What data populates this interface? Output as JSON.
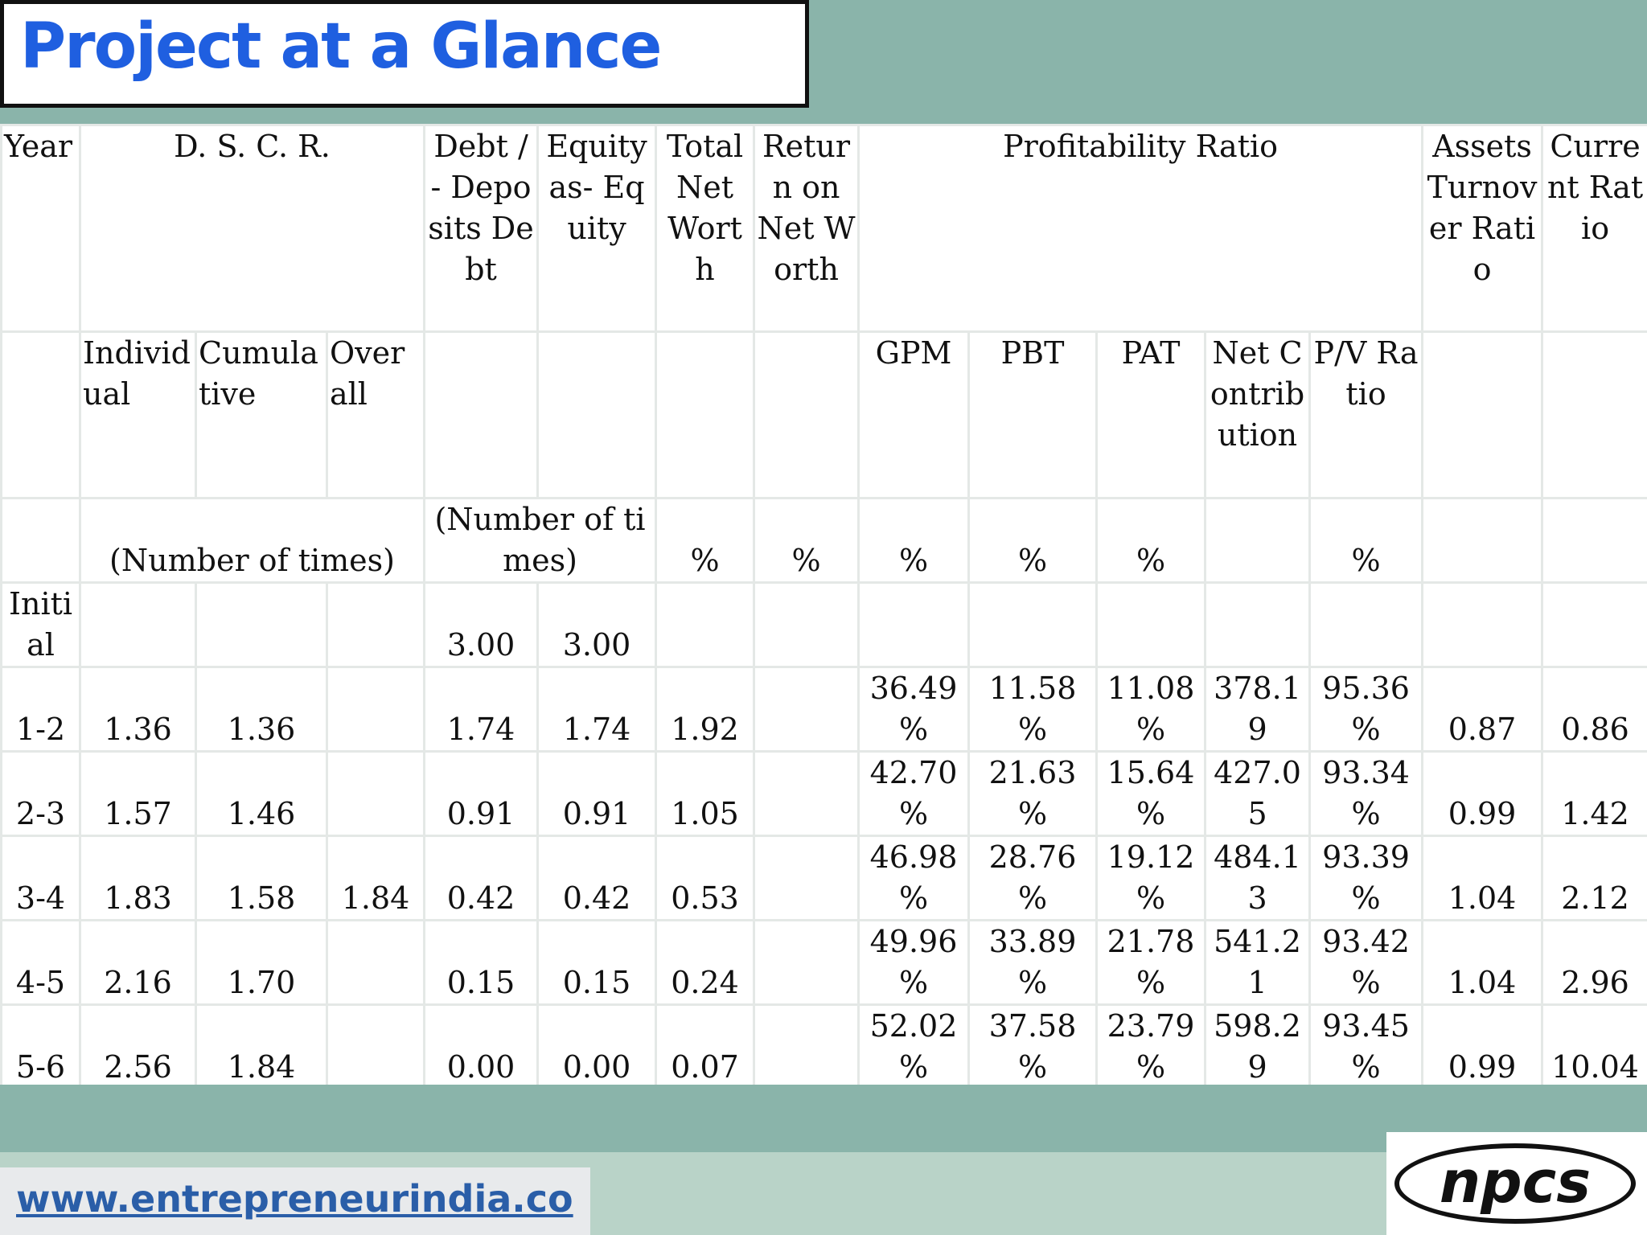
{
  "title": "Project at a Glance",
  "table": {
    "header_row1": [
      "Year",
      "D. S. C. R.",
      "Debt / - Deposits Debt",
      "Equity as- Equity",
      "Total Net Worth",
      "Return on Net Worth",
      "Profitability Ratio",
      "Assets Turnover Ratio",
      "Current Ratio"
    ],
    "header_row2": [
      "Individual",
      "Cumulative",
      "Overall",
      "GPM",
      "PBT",
      "PAT",
      "Net Contribution",
      "P/V Ratio"
    ],
    "units": [
      "(Number of times)",
      "(Number of times)",
      "%",
      "%",
      "%",
      "%",
      "%",
      "%"
    ],
    "rows": [
      [
        "Initial",
        null,
        null,
        null,
        "3.00",
        "3.00",
        null,
        null,
        null,
        null,
        null,
        null,
        null,
        null,
        null
      ],
      [
        "1-2",
        "1.36",
        "1.36",
        null,
        "1.74",
        "1.74",
        "1.92",
        null,
        "36.49 %",
        "11.58 %",
        "11.08 %",
        "378.19",
        "95.36 %",
        "0.87",
        "0.86"
      ],
      [
        "2-3",
        "1.57",
        "1.46",
        null,
        "0.91",
        "0.91",
        "1.05",
        null,
        "42.70 %",
        "21.63 %",
        "15.64 %",
        "427.05",
        "93.34 %",
        "0.99",
        "1.42"
      ],
      [
        "3-4",
        "1.83",
        "1.58",
        "1.84",
        "0.42",
        "0.42",
        "0.53",
        null,
        "46.98 %",
        "28.76 %",
        "19.12 %",
        "484.13",
        "93.39 %",
        "1.04",
        "2.12"
      ],
      [
        "4-5",
        "2.16",
        "1.70",
        null,
        "0.15",
        "0.15",
        "0.24",
        null,
        "49.96 %",
        "33.89 %",
        "21.78 %",
        "541.21",
        "93.42 %",
        "1.04",
        "2.96"
      ],
      [
        "5-6",
        "2.56",
        "1.84",
        null,
        "0.00",
        "0.00",
        "0.07",
        null,
        "52.02 %",
        "37.58 %",
        "23.79 %",
        "598.29",
        "93.45 %",
        "0.99",
        "10.04"
      ]
    ]
  },
  "footer": {
    "url": "www.entrepreneurindia.co",
    "logo": "npcs"
  }
}
